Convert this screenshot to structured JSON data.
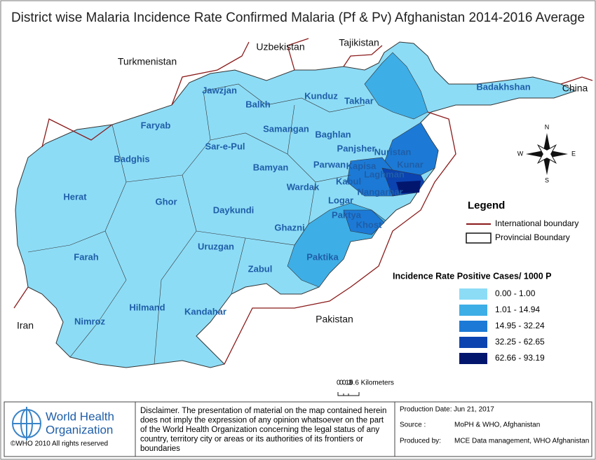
{
  "title": "District wise Malaria Incidence Rate Confirmed Malaria (Pf & Pv) Afghanistan 2014-2016 Average",
  "countries": [
    "Uzbekistan",
    "Tajikistan",
    "Turkmenistan",
    "China",
    "Iran",
    "Pakistan"
  ],
  "provinces": [
    "Badakhshan",
    "Jawzjan",
    "Kunduz",
    "Takhar",
    "Balkh",
    "Faryab",
    "Samangan",
    "Baghlan",
    "Panjsher",
    "Nuristan",
    "Sar-e-Pul",
    "Badghis",
    "Bamyan",
    "Parwan",
    "Kapisa",
    "Kunar",
    "Laghman",
    "Kabul",
    "Wardak",
    "Nangarhar",
    "Herat",
    "Ghor",
    "Logar",
    "Paktya",
    "Daykundi",
    "Khost",
    "Ghazni",
    "Farah",
    "Uruzgan",
    "Paktika",
    "Zabul",
    "Hilmand",
    "Kandahar",
    "Nimroz"
  ],
  "compass": [
    "N",
    "E",
    "S",
    "W"
  ],
  "legend": {
    "title": "Legend",
    "international_boundary": "International boundary",
    "provincial_boundary": "Provincial Boundary",
    "incidence_title": "Incidence Rate Positive Cases/ 1000 P",
    "classes": [
      {
        "label": "0.00 - 1.00",
        "color": "#8ddcf6"
      },
      {
        "label": "1.01 - 14.94",
        "color": "#3eaee6"
      },
      {
        "label": "14.95 - 32.24",
        "color": "#1c7ad6"
      },
      {
        "label": "32.25 - 62.65",
        "color": "#0b43b0"
      },
      {
        "label": "62.66 - 93.19",
        "color": "#02166e"
      }
    ]
  },
  "scale_bar": {
    "labels": [
      "0",
      "0.15",
      "0.3",
      "0.6 Kilometers"
    ]
  },
  "footer": {
    "org_line1": "World Health",
    "org_line2": "Organization",
    "copyright": "©WHO 2010 All rights reserved",
    "disclaimer": [
      "Disclaimer. The presentation of material on the map contained herein",
      "does not imply the expression of any opinion whatsoever on the part",
      "of the World Health Organization concerning the legal status of any",
      "country, territory city or areas or its authorities of its frontiers or",
      "boundaries"
    ],
    "production_date_label": "Production Date:",
    "production_date": "Jun 21, 2017",
    "source_label": "Source :",
    "source": "MoPH & WHO, Afghanistan",
    "produced_by_label": "Produced by:",
    "produced_by": "MCE Data management, WHO Afghanistan"
  }
}
